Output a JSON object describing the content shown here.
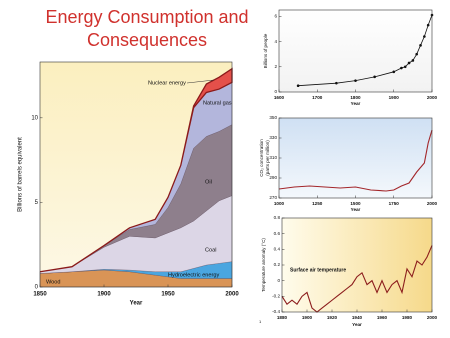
{
  "title": "Energy Consumption and Consequences",
  "footnote": "1",
  "chart_data": [
    {
      "type": "area",
      "stacked": true,
      "ylabel": "Billions of barrels equivalent",
      "xlabel": "Year",
      "x": [
        1850,
        1875,
        1900,
        1920,
        1940,
        1950,
        1960,
        1970,
        1980,
        1990,
        2000
      ],
      "series": [
        {
          "name": "Wood",
          "color": "#d99456",
          "values": [
            0.8,
            0.9,
            1.0,
            0.9,
            0.7,
            0.6,
            0.5,
            0.5,
            0.5,
            0.5,
            0.5
          ]
        },
        {
          "name": "Hydroelectric energy",
          "color": "#4aa6e0",
          "values": [
            0,
            0,
            0.05,
            0.1,
            0.2,
            0.3,
            0.4,
            0.6,
            0.8,
            0.9,
            1.0
          ]
        },
        {
          "name": "Coal",
          "color": "#dcd6e6",
          "values": [
            0.1,
            0.3,
            1.3,
            2.0,
            2.0,
            2.3,
            2.6,
            2.8,
            3.2,
            3.7,
            3.9
          ]
        },
        {
          "name": "Oil",
          "color": "#8e7f8c",
          "values": [
            0,
            0,
            0.1,
            0.4,
            0.8,
            1.5,
            2.6,
            4.3,
            4.4,
            4.1,
            4.2
          ]
        },
        {
          "name": "Natural gas",
          "color": "#b3b6dc",
          "values": [
            0,
            0,
            0,
            0.1,
            0.3,
            0.6,
            1.1,
            2.4,
            2.6,
            2.5,
            2.5
          ]
        },
        {
          "name": "Nuclear energy",
          "color": "#e4504a",
          "values": [
            0,
            0,
            0,
            0,
            0,
            0,
            0,
            0.1,
            0.5,
            0.7,
            0.8
          ]
        }
      ],
      "xlim": [
        1850,
        2000
      ],
      "xticks": [
        1850,
        1900,
        1950,
        2000
      ],
      "ylim": [
        0,
        13.3
      ],
      "yticks": [
        0,
        5,
        10
      ]
    },
    {
      "type": "line",
      "markers": true,
      "ylabel": "Billions of people",
      "xlabel": "Year",
      "x": [
        1650,
        1750,
        1800,
        1850,
        1900,
        1920,
        1930,
        1940,
        1950,
        1960,
        1970,
        1980,
        1990,
        2000
      ],
      "series": [
        {
          "color": "#111111",
          "values": [
            0.5,
            0.7,
            0.9,
            1.2,
            1.6,
            1.9,
            2.0,
            2.3,
            2.5,
            3.0,
            3.7,
            4.4,
            5.3,
            6.1
          ]
        }
      ],
      "xlim": [
        1600,
        2000
      ],
      "xticks": [
        1600,
        1700,
        1800,
        1900,
        2000
      ],
      "ylim": [
        0,
        6.5
      ],
      "yticks": [
        0,
        2,
        4,
        6
      ]
    },
    {
      "type": "line",
      "ylabel": [
        "CO₂ concentration",
        "(parts per million)"
      ],
      "xlabel": "Year",
      "x": [
        1000,
        1100,
        1200,
        1300,
        1400,
        1500,
        1600,
        1700,
        1750,
        1800,
        1850,
        1900,
        1950,
        1975,
        2000
      ],
      "series": [
        {
          "color": "#a3262a",
          "values": [
            279,
            281,
            282,
            281,
            280,
            281,
            278,
            277,
            278,
            282,
            285,
            296,
            305,
            325,
            338
          ]
        }
      ],
      "xlim": [
        1000,
        2000
      ],
      "xticks": [
        1000,
        1250,
        1500,
        1750,
        2000
      ],
      "ylim": [
        270,
        350
      ],
      "yticks": [
        270,
        290,
        310,
        330,
        350
      ]
    },
    {
      "type": "line",
      "ylabel": "Temperature anomaly (°C)",
      "xlabel": "Year",
      "annotation": "Surface air temperature",
      "x": [
        1880,
        1884,
        1888,
        1892,
        1896,
        1900,
        1904,
        1908,
        1912,
        1916,
        1920,
        1924,
        1928,
        1932,
        1936,
        1940,
        1944,
        1948,
        1952,
        1956,
        1960,
        1964,
        1968,
        1972,
        1976,
        1980,
        1984,
        1988,
        1992,
        1996,
        2000
      ],
      "series": [
        {
          "color": "#8c1d1d",
          "values": [
            -0.2,
            -0.3,
            -0.25,
            -0.3,
            -0.2,
            -0.15,
            -0.35,
            -0.4,
            -0.35,
            -0.3,
            -0.25,
            -0.2,
            -0.15,
            -0.1,
            -0.05,
            0.05,
            0.1,
            -0.05,
            0.0,
            -0.15,
            0.0,
            -0.15,
            -0.05,
            0.0,
            -0.15,
            0.15,
            0.05,
            0.25,
            0.2,
            0.3,
            0.45
          ]
        }
      ],
      "xlim": [
        1880,
        2000
      ],
      "xticks": [
        1880,
        1900,
        1920,
        1940,
        1960,
        1980,
        2000
      ],
      "ylim": [
        -0.4,
        0.8
      ],
      "yticks": [
        -0.4,
        -0.2,
        0,
        0.2,
        0.4,
        0.6,
        0.8
      ]
    }
  ]
}
